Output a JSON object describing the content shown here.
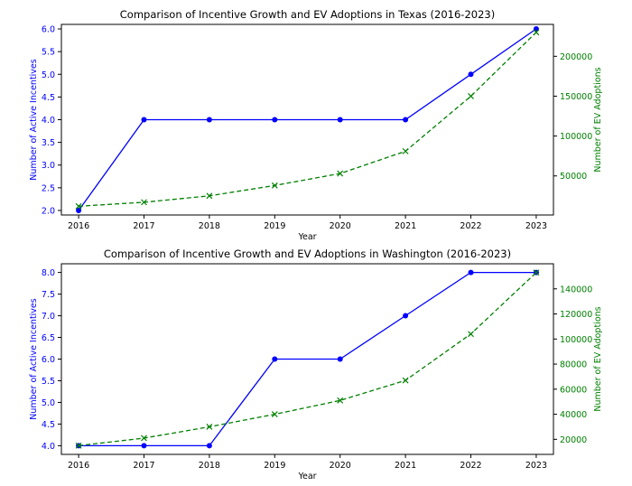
{
  "colors": {
    "left_axis": "#0000ff",
    "right_axis": "#008000",
    "frame": "#000000",
    "text": "#000000"
  },
  "chart_data": [
    {
      "type": "line",
      "title": "Comparison of Incentive Growth and EV Adoptions in Texas (2016-2023)",
      "xlabel": "Year",
      "ylabel_left": "Number of Active Incentives",
      "ylabel_right": "Number of EV Adoptions",
      "x": [
        2016,
        2017,
        2018,
        2019,
        2020,
        2021,
        2022,
        2023
      ],
      "x_ticks": [
        "2016",
        "2017",
        "2018",
        "2019",
        "2020",
        "2021",
        "2022",
        "2023"
      ],
      "ylim_left": [
        1.9,
        6.1
      ],
      "ylim_right": [
        1000,
        240000
      ],
      "y_ticks_left": [
        "2.0",
        "2.5",
        "3.0",
        "3.5",
        "4.0",
        "4.5",
        "5.0",
        "5.5",
        "6.0"
      ],
      "y_ticks_right": [
        "50000",
        "100000",
        "150000",
        "200000"
      ],
      "series": [
        {
          "axis": "left",
          "color": "#0000ff",
          "marker": "circle",
          "style": "solid",
          "values": [
            2,
            4,
            4,
            4,
            4,
            4,
            5,
            6
          ]
        },
        {
          "axis": "right",
          "color": "#008000",
          "marker": "x",
          "style": "dashed",
          "values": [
            12000,
            17000,
            25000,
            38000,
            53000,
            81000,
            150000,
            230000
          ]
        }
      ]
    },
    {
      "type": "line",
      "title": "Comparison of Incentive Growth and EV Adoptions in Washington (2016-2023)",
      "xlabel": "Year",
      "ylabel_left": "Number of Active Incentives",
      "ylabel_right": "Number of EV Adoptions",
      "x": [
        2016,
        2017,
        2018,
        2019,
        2020,
        2021,
        2022,
        2023
      ],
      "x_ticks": [
        "2016",
        "2017",
        "2018",
        "2019",
        "2020",
        "2021",
        "2022",
        "2023"
      ],
      "ylim_left": [
        3.8,
        8.2
      ],
      "ylim_right": [
        8000,
        160000
      ],
      "y_ticks_left": [
        "4.0",
        "4.5",
        "5.0",
        "5.5",
        "6.0",
        "6.5",
        "7.0",
        "7.5",
        "8.0"
      ],
      "y_ticks_right": [
        "20000",
        "40000",
        "60000",
        "80000",
        "100000",
        "120000",
        "140000"
      ],
      "series": [
        {
          "axis": "left",
          "color": "#0000ff",
          "marker": "circle",
          "style": "solid",
          "values": [
            4,
            4,
            4,
            6,
            6,
            7,
            8,
            8
          ]
        },
        {
          "axis": "right",
          "color": "#008000",
          "marker": "x",
          "style": "dashed",
          "values": [
            15000,
            21000,
            30000,
            40000,
            51000,
            67000,
            104000,
            153000
          ]
        }
      ]
    }
  ]
}
